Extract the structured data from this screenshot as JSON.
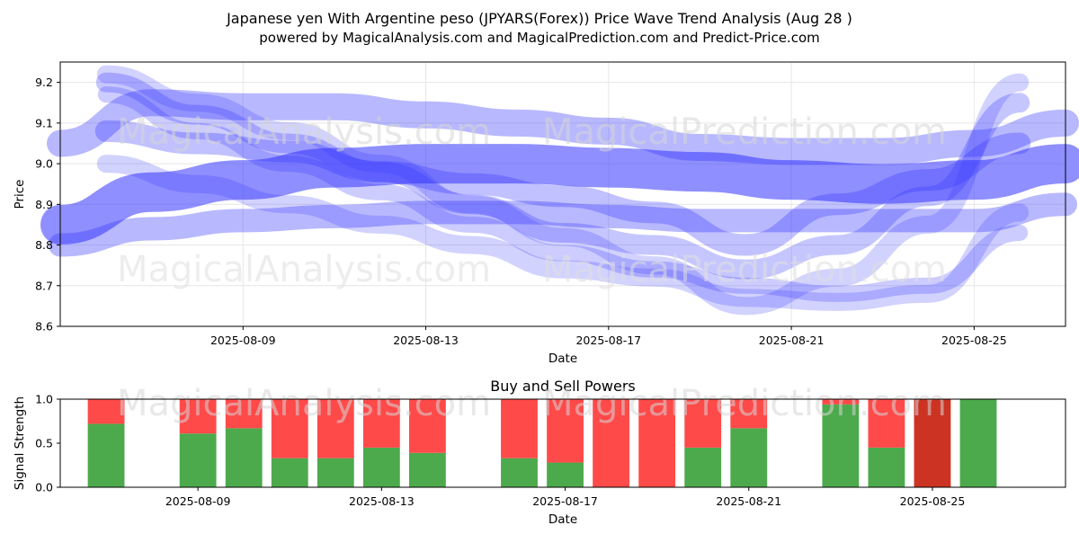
{
  "title_line1": "Japanese yen With Argentine peso (JPYARS(Forex)) Price Wave Trend Analysis (Aug 28 )",
  "title_line2": "powered by MagicalAnalysis.com and MagicalPrediction.com and Predict-Price.com",
  "watermarks": {
    "analysis": "MagicalAnalysis.com",
    "prediction": "MagicalPrediction.com"
  },
  "colors": {
    "wave": "#3333ff",
    "buy": "#4caa4c",
    "sell": "#ff4a4a",
    "sell_dark": "#cc3322"
  },
  "chart_data": [
    {
      "type": "line",
      "name": "price-wave",
      "title": "",
      "xlabel": "Date",
      "ylabel": "Price",
      "xlim": [
        "2025-08-05",
        "2025-08-27"
      ],
      "ylim": [
        8.6,
        9.25
      ],
      "xticks": [
        "2025-08-09",
        "2025-08-13",
        "2025-08-17",
        "2025-08-21",
        "2025-08-25"
      ],
      "yticks": [
        "8.6",
        "8.7",
        "8.8",
        "8.9",
        "9.0",
        "9.1",
        "9.2"
      ],
      "grid": true,
      "series": [
        {
          "name": "wave-main",
          "x": [
            "2025-08-05",
            "2025-08-07",
            "2025-08-09",
            "2025-08-11",
            "2025-08-13",
            "2025-08-15",
            "2025-08-17",
            "2025-08-19",
            "2025-08-21",
            "2025-08-23",
            "2025-08-25",
            "2025-08-27"
          ],
          "values": [
            8.85,
            8.93,
            8.96,
            8.99,
            9.0,
            9.0,
            8.99,
            8.98,
            8.96,
            8.95,
            8.96,
            9.0
          ]
        },
        {
          "name": "wave-upper",
          "x": [
            "2025-08-05",
            "2025-08-07",
            "2025-08-09",
            "2025-08-11",
            "2025-08-13",
            "2025-08-15",
            "2025-08-17",
            "2025-08-19",
            "2025-08-21",
            "2025-08-23",
            "2025-08-25",
            "2025-08-27"
          ],
          "values": [
            9.05,
            9.15,
            9.14,
            9.14,
            9.12,
            9.1,
            9.08,
            9.04,
            9.03,
            9.03,
            9.05,
            9.1
          ]
        },
        {
          "name": "wave-lower",
          "x": [
            "2025-08-05",
            "2025-08-07",
            "2025-08-09",
            "2025-08-11",
            "2025-08-13",
            "2025-08-15",
            "2025-08-17",
            "2025-08-19",
            "2025-08-21",
            "2025-08-23",
            "2025-08-25",
            "2025-08-27"
          ],
          "values": [
            8.8,
            8.84,
            8.86,
            8.87,
            8.88,
            8.88,
            8.87,
            8.86,
            8.86,
            8.86,
            8.86,
            8.9
          ]
        },
        {
          "name": "wave-falling-1",
          "x": [
            "2025-08-06",
            "2025-08-08",
            "2025-08-10",
            "2025-08-12",
            "2025-08-14",
            "2025-08-16",
            "2025-08-18",
            "2025-08-20",
            "2025-08-22",
            "2025-08-24",
            "2025-08-26"
          ],
          "values": [
            9.2,
            9.12,
            9.05,
            8.98,
            8.9,
            8.83,
            8.8,
            8.74,
            8.8,
            8.92,
            9.15
          ]
        },
        {
          "name": "wave-falling-2",
          "x": [
            "2025-08-06",
            "2025-08-08",
            "2025-08-10",
            "2025-08-12",
            "2025-08-14",
            "2025-08-16",
            "2025-08-18",
            "2025-08-20",
            "2025-08-22",
            "2025-08-24",
            "2025-08-26"
          ],
          "values": [
            9.17,
            9.08,
            9.0,
            8.93,
            8.85,
            8.78,
            8.74,
            8.7,
            8.68,
            8.7,
            8.83
          ]
        },
        {
          "name": "wave-falling-3",
          "x": [
            "2025-08-06",
            "2025-08-08",
            "2025-08-10",
            "2025-08-12",
            "2025-08-14",
            "2025-08-16",
            "2025-08-18",
            "2025-08-20",
            "2025-08-22",
            "2025-08-24",
            "2025-08-26"
          ],
          "values": [
            9.22,
            9.15,
            9.08,
            9.0,
            8.9,
            8.82,
            8.75,
            8.65,
            8.72,
            8.85,
            9.2
          ]
        },
        {
          "name": "wave-mid",
          "x": [
            "2025-08-06",
            "2025-08-08",
            "2025-08-10",
            "2025-08-12",
            "2025-08-14",
            "2025-08-16",
            "2025-08-18",
            "2025-08-20",
            "2025-08-22",
            "2025-08-24",
            "2025-08-26"
          ],
          "values": [
            9.08,
            9.05,
            9.03,
            8.98,
            8.95,
            8.92,
            8.88,
            8.8,
            8.9,
            8.96,
            9.05
          ]
        },
        {
          "name": "wave-low",
          "x": [
            "2025-08-06",
            "2025-08-08",
            "2025-08-10",
            "2025-08-12",
            "2025-08-14",
            "2025-08-16",
            "2025-08-18",
            "2025-08-20",
            "2025-08-22",
            "2025-08-24",
            "2025-08-26"
          ],
          "values": [
            9.0,
            8.95,
            8.9,
            8.85,
            8.8,
            8.74,
            8.72,
            8.67,
            8.66,
            8.68,
            8.88
          ]
        }
      ]
    },
    {
      "type": "bar",
      "name": "buy-sell-powers",
      "title": "Buy and Sell Powers",
      "xlabel": "Date",
      "ylabel": "Signal Strength",
      "xlim": [
        "2025-08-06",
        "2025-08-27"
      ],
      "ylim": [
        0,
        1.0
      ],
      "xticks": [
        "2025-08-09",
        "2025-08-13",
        "2025-08-17",
        "2025-08-21",
        "2025-08-25"
      ],
      "yticks": [
        "0.0",
        "0.5",
        "1.0"
      ],
      "categories": [
        "2025-08-07",
        "2025-08-08",
        "2025-08-09",
        "2025-08-10",
        "2025-08-11",
        "2025-08-12",
        "2025-08-13",
        "2025-08-14",
        "2025-08-15",
        "2025-08-16",
        "2025-08-17",
        "2025-08-18",
        "2025-08-19",
        "2025-08-20",
        "2025-08-21",
        "2025-08-22",
        "2025-08-23",
        "2025-08-24",
        "2025-08-25",
        "2025-08-26"
      ],
      "series": [
        {
          "name": "Buy",
          "values": [
            0.72,
            0,
            0.61,
            0.67,
            0.33,
            0.33,
            0.45,
            0.39,
            0,
            0.33,
            0.28,
            0,
            0,
            0.45,
            0.67,
            0,
            0.94,
            0.45,
            0,
            1.0
          ]
        },
        {
          "name": "Sell",
          "values": [
            0.28,
            0,
            0.39,
            0.33,
            0.67,
            0.67,
            0.55,
            0.61,
            0,
            0.67,
            0.72,
            1.0,
            1.0,
            0.55,
            0.33,
            0,
            0.06,
            0.55,
            1.0,
            0
          ]
        }
      ],
      "special": [
        {
          "category": "2025-08-25",
          "color": "#cc3322"
        }
      ]
    }
  ]
}
